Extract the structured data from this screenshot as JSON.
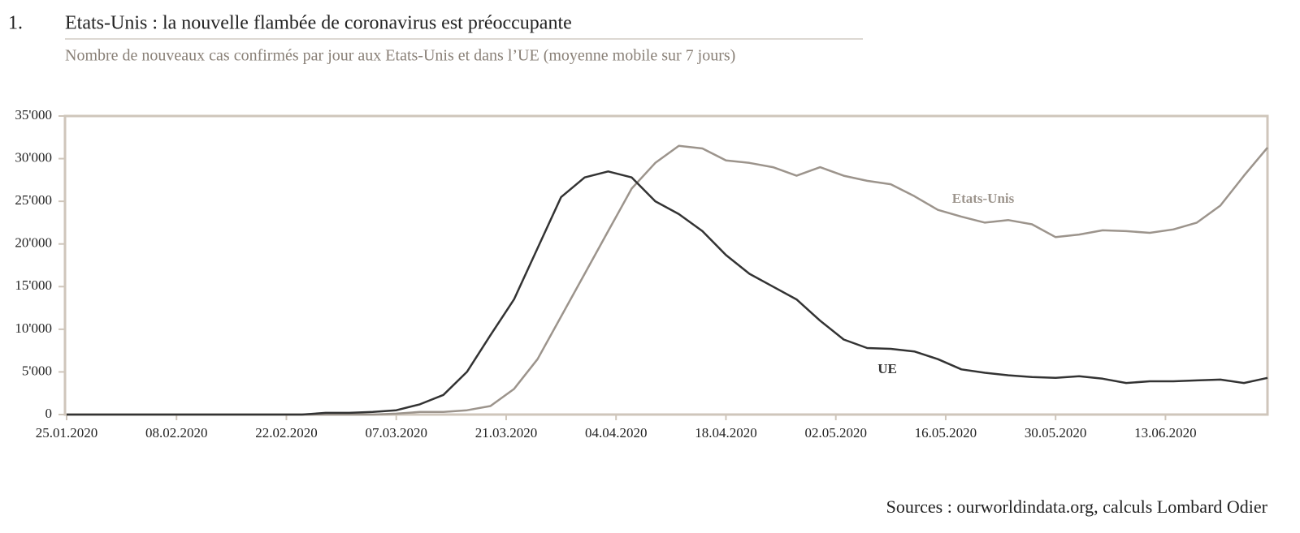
{
  "chart_data": {
    "type": "line",
    "number": "1.",
    "title": "Etats-Unis : la nouvelle flambée de coronavirus est préoccupante",
    "subtitle": "Nombre de nouveaux cas confirmés par jour aux Etats-Unis et dans l’UE (moyenne mobile sur 7 jours)",
    "source": "Sources : ourworldindata.org, calculs Lombard Odier",
    "x": [
      "25.01.2020",
      "28.01.2020",
      "31.01.2020",
      "03.02.2020",
      "06.02.2020",
      "09.02.2020",
      "12.02.2020",
      "15.02.2020",
      "18.02.2020",
      "21.02.2020",
      "24.02.2020",
      "27.02.2020",
      "01.03.2020",
      "04.03.2020",
      "07.03.2020",
      "10.03.2020",
      "13.03.2020",
      "16.03.2020",
      "19.03.2020",
      "22.03.2020",
      "25.03.2020",
      "28.03.2020",
      "31.03.2020",
      "03.04.2020",
      "06.04.2020",
      "09.04.2020",
      "12.04.2020",
      "15.04.2020",
      "18.04.2020",
      "21.04.2020",
      "24.04.2020",
      "27.04.2020",
      "30.04.2020",
      "03.05.2020",
      "06.05.2020",
      "09.05.2020",
      "12.05.2020",
      "15.05.2020",
      "18.05.2020",
      "21.05.2020",
      "24.05.2020",
      "27.05.2020",
      "30.05.2020",
      "02.06.2020",
      "05.06.2020",
      "08.06.2020",
      "11.06.2020",
      "14.06.2020",
      "17.06.2020",
      "20.06.2020",
      "23.06.2020",
      "26.06.2020"
    ],
    "series": [
      {
        "name": "Etats-Unis",
        "color": "#9c948c",
        "values": [
          0,
          0,
          0,
          0,
          0,
          0,
          0,
          0,
          0,
          0,
          0,
          0,
          0,
          0,
          100,
          300,
          300,
          500,
          1000,
          3000,
          6500,
          11500,
          16500,
          21500,
          26500,
          29500,
          31500,
          31200,
          29800,
          29500,
          29000,
          28000,
          29000,
          28000,
          27400,
          27000,
          25600,
          24000,
          23200,
          22500,
          22800,
          22300,
          20800,
          21100,
          21600,
          21500,
          21300,
          21700,
          22500,
          24500,
          28000,
          31300
        ]
      },
      {
        "name": "UE",
        "color": "#333333",
        "values": [
          0,
          0,
          0,
          0,
          0,
          0,
          0,
          0,
          0,
          0,
          0,
          200,
          200,
          300,
          500,
          1200,
          2300,
          5000,
          9300,
          13500,
          19500,
          25500,
          27800,
          28500,
          27800,
          25000,
          23500,
          21500,
          18700,
          16500,
          15000,
          13500,
          11000,
          8800,
          7800,
          7700,
          7400,
          6500,
          5300,
          4900,
          4600,
          4400,
          4300,
          4500,
          4200,
          3700,
          3900,
          3900,
          4000,
          4100,
          3700,
          4300
        ]
      }
    ],
    "xlim": [
      "25.01.2020",
      "26.06.2020"
    ],
    "xticks": [
      "25.01.2020",
      "08.02.2020",
      "22.02.2020",
      "07.03.2020",
      "21.03.2020",
      "04.04.2020",
      "18.04.2020",
      "02.05.2020",
      "16.05.2020",
      "30.05.2020",
      "13.06.2020"
    ],
    "ylim": [
      0,
      35000
    ],
    "yticks": [
      0,
      {
        "value": 5000,
        "label": "5'000"
      },
      {
        "value": 10000,
        "label": "10'000"
      },
      {
        "value": 15000,
        "label": "15'000"
      },
      {
        "value": 20000,
        "label": "20'000"
      },
      {
        "value": 25000,
        "label": "25'000"
      },
      {
        "value": 30000,
        "label": "30'000"
      },
      {
        "value": 35000,
        "label": "35'000"
      }
    ],
    "grid": false
  }
}
